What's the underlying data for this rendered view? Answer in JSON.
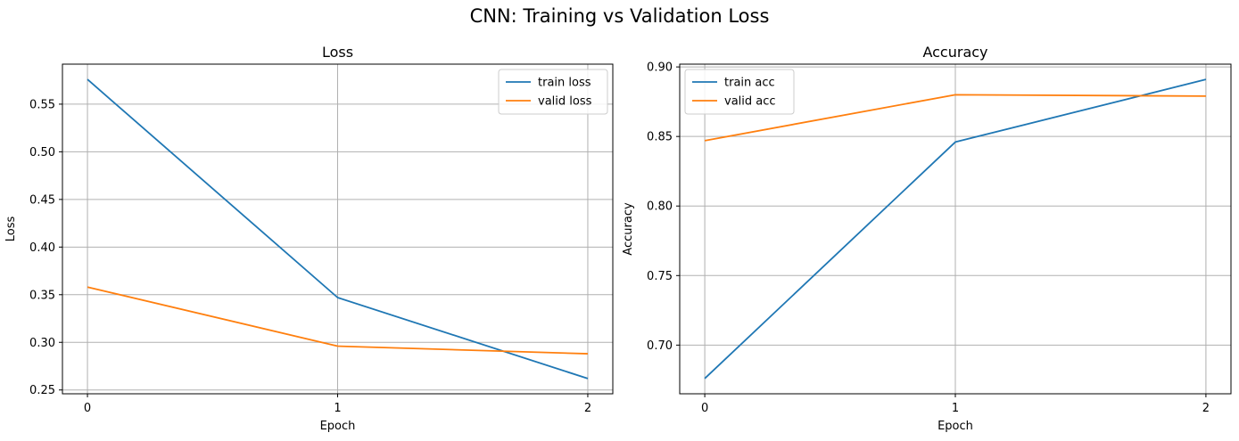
{
  "figure_title": "CNN: Training vs Validation Loss",
  "colors": {
    "train": "#1f77b4",
    "valid": "#ff7f0e",
    "grid": "#b0b0b0"
  },
  "chart_data": [
    {
      "type": "line",
      "title": "Loss",
      "xlabel": "Epoch",
      "ylabel": "Loss",
      "x": [
        0,
        1,
        2
      ],
      "xticks": [
        "0",
        "1",
        "2"
      ],
      "yticks": [
        "0.25",
        "0.30",
        "0.35",
        "0.40",
        "0.45",
        "0.50",
        "0.55"
      ],
      "ylim": [
        0.246,
        0.592
      ],
      "xlim": [
        -0.1,
        2.1
      ],
      "grid": true,
      "legend_position": "top-right",
      "series": [
        {
          "name": "train loss",
          "values": [
            0.576,
            0.347,
            0.262
          ],
          "color": "#1f77b4"
        },
        {
          "name": "valid loss",
          "values": [
            0.358,
            0.296,
            0.288
          ],
          "color": "#ff7f0e"
        }
      ]
    },
    {
      "type": "line",
      "title": "Accuracy",
      "xlabel": "Epoch",
      "ylabel": "Accuracy",
      "x": [
        0,
        1,
        2
      ],
      "xticks": [
        "0",
        "1",
        "2"
      ],
      "yticks": [
        "0.70",
        "0.75",
        "0.80",
        "0.85",
        "0.90"
      ],
      "ylim": [
        0.665,
        0.902
      ],
      "xlim": [
        -0.1,
        2.1
      ],
      "grid": true,
      "legend_position": "top-left",
      "series": [
        {
          "name": "train acc",
          "values": [
            0.676,
            0.846,
            0.891
          ],
          "color": "#1f77b4"
        },
        {
          "name": "valid acc",
          "values": [
            0.847,
            0.88,
            0.879
          ],
          "color": "#ff7f0e"
        }
      ]
    }
  ]
}
